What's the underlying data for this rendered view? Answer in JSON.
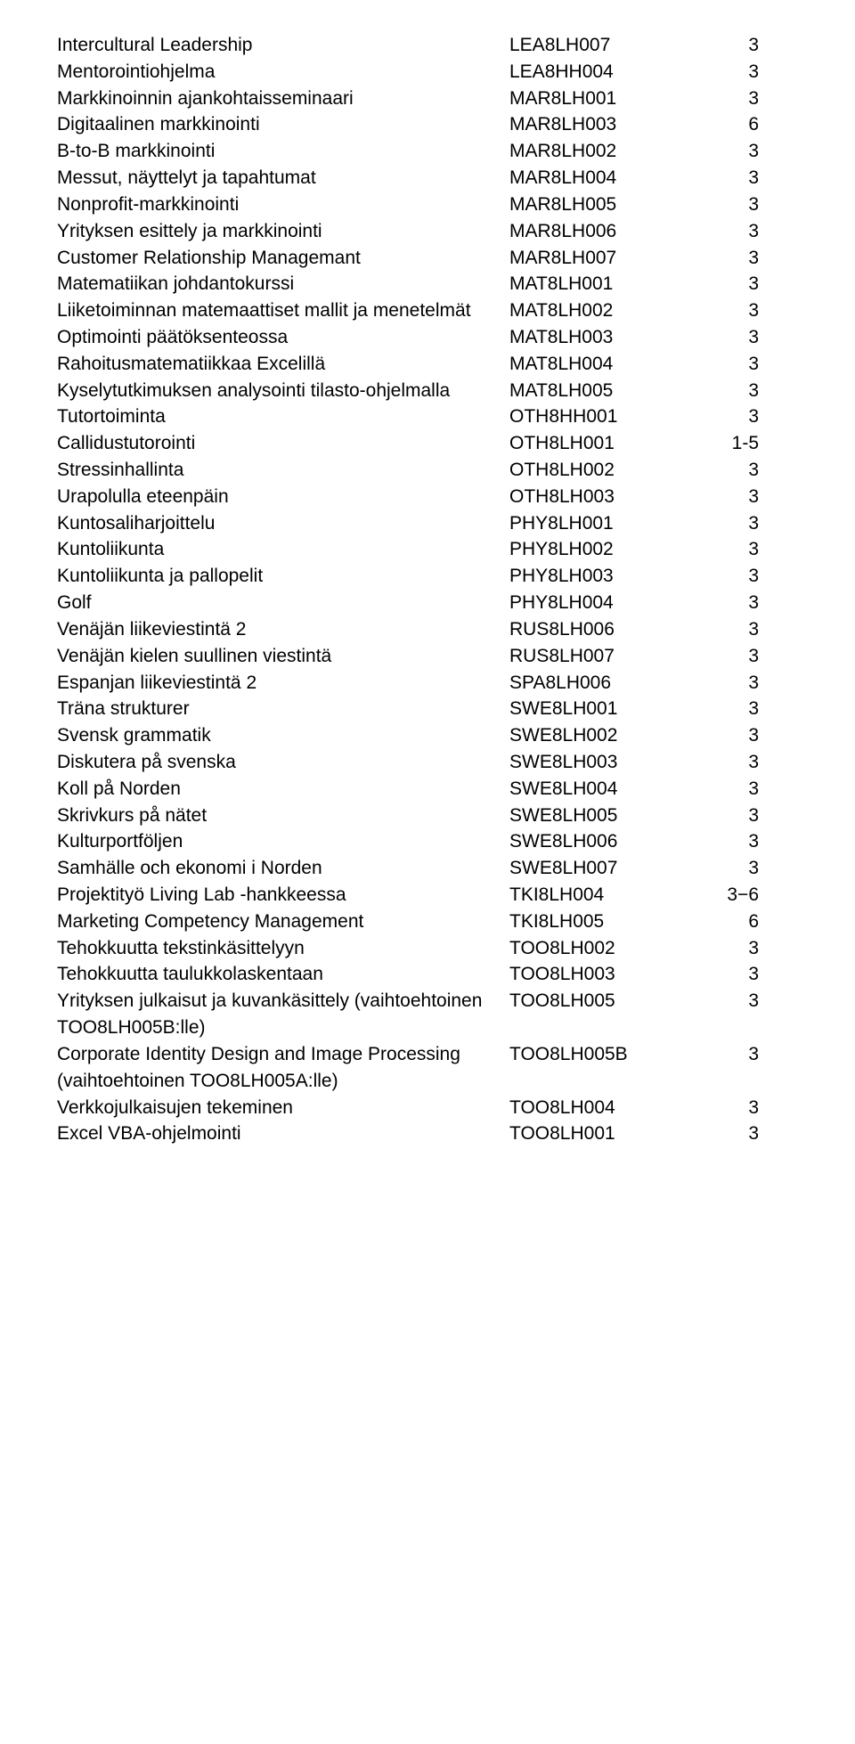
{
  "rows": [
    {
      "name": "Intercultural Leadership",
      "code": "LEA8LH007",
      "credits": "3"
    },
    {
      "name": "Mentorointiohjelma",
      "code": "LEA8HH004",
      "credits": "3"
    },
    {
      "name": "Markkinoinnin ajankohtaisseminaari",
      "code": "MAR8LH001",
      "credits": "3"
    },
    {
      "name": "Digitaalinen markkinointi",
      "code": "MAR8LH003",
      "credits": "6"
    },
    {
      "name": "B-to-B markkinointi",
      "code": "MAR8LH002",
      "credits": "3"
    },
    {
      "name": "Messut, näyttelyt ja tapahtumat",
      "code": "MAR8LH004",
      "credits": "3"
    },
    {
      "name": "Nonprofit-markkinointi",
      "code": "MAR8LH005",
      "credits": "3"
    },
    {
      "name": "Yrityksen esittely ja markkinointi",
      "code": "MAR8LH006",
      "credits": "3"
    },
    {
      "name": "Customer Relationship Managemant",
      "code": "MAR8LH007",
      "credits": "3"
    },
    {
      "name": "Matematiikan johdantokurssi",
      "code": "MAT8LH001",
      "credits": "3"
    },
    {
      "name": "Liiketoiminnan matemaattiset mallit ja menetelmät",
      "code": "MAT8LH002",
      "credits": "3"
    },
    {
      "name": "Optimointi päätöksenteossa",
      "code": "MAT8LH003",
      "credits": "3"
    },
    {
      "name": "Rahoitusmatematiikkaa Excelillä",
      "code": "MAT8LH004",
      "credits": "3"
    },
    {
      "name": "Kyselytutkimuksen analysointi tilasto-ohjelmalla",
      "code": "MAT8LH005",
      "credits": "3"
    },
    {
      "name": "Tutortoiminta",
      "code": "OTH8HH001",
      "credits": "3"
    },
    {
      "name": "Callidustutorointi",
      "code": "OTH8LH001",
      "credits": "1-5"
    },
    {
      "name": "Stressinhallinta",
      "code": "OTH8LH002",
      "credits": "3"
    },
    {
      "name": "Urapolulla eteenpäin",
      "code": "OTH8LH003",
      "credits": "3"
    },
    {
      "name": "Kuntosaliharjoittelu",
      "code": "PHY8LH001",
      "credits": "3"
    },
    {
      "name": "Kuntoliikunta",
      "code": "PHY8LH002",
      "credits": "3"
    },
    {
      "name": "Kuntoliikunta ja pallopelit",
      "code": "PHY8LH003",
      "credits": "3"
    },
    {
      "name": "Golf",
      "code": "PHY8LH004",
      "credits": "3"
    },
    {
      "name": "Venäjän liikeviestintä 2",
      "code": "RUS8LH006",
      "credits": "3"
    },
    {
      "name": "Venäjän kielen suullinen viestintä",
      "code": "RUS8LH007",
      "credits": "3"
    },
    {
      "name": "Espanjan liikeviestintä 2",
      "code": "SPA8LH006",
      "credits": "3"
    },
    {
      "name": "Träna strukturer",
      "code": "SWE8LH001",
      "credits": "3"
    },
    {
      "name": "Svensk grammatik",
      "code": "SWE8LH002",
      "credits": "3"
    },
    {
      "name": "Diskutera på svenska",
      "code": "SWE8LH003",
      "credits": "3"
    },
    {
      "name": "Koll på Norden",
      "code": "SWE8LH004",
      "credits": "3"
    },
    {
      "name": "Skrivkurs på nätet",
      "code": "SWE8LH005",
      "credits": "3"
    },
    {
      "name": "Kulturportföljen",
      "code": "SWE8LH006",
      "credits": "3"
    },
    {
      "name": "Samhälle och ekonomi i Norden",
      "code": "SWE8LH007",
      "credits": "3"
    },
    {
      "name": "Projektityö Living Lab -hankkeessa",
      "code": "TKI8LH004",
      "credits": "3−6"
    },
    {
      "name": "Marketing Competency Management",
      "code": "TKI8LH005",
      "credits": "6"
    },
    {
      "name": "Tehokkuutta tekstinkäsittelyyn",
      "code": "TOO8LH002",
      "credits": "3"
    },
    {
      "name": "Tehokkuutta taulukkolaskentaan",
      "code": "TOO8LH003",
      "credits": "3"
    },
    {
      "name": "Yrityksen julkaisut ja kuvankäsittely (vaihtoehtoinen TOO8LH005B:lle)",
      "code": "TOO8LH005",
      "credits": "3"
    },
    {
      "name": "Corporate Identity Design and Image Processing\n(vaihtoehtoinen TOO8LH005A:lle)",
      "code": "TOO8LH005B",
      "credits": "3"
    },
    {
      "name": "Verkkojulkaisujen tekeminen",
      "code": "TOO8LH004",
      "credits": "3"
    },
    {
      "name": "Excel VBA-ohjelmointi",
      "code": "TOO8LH001",
      "credits": "3"
    }
  ]
}
